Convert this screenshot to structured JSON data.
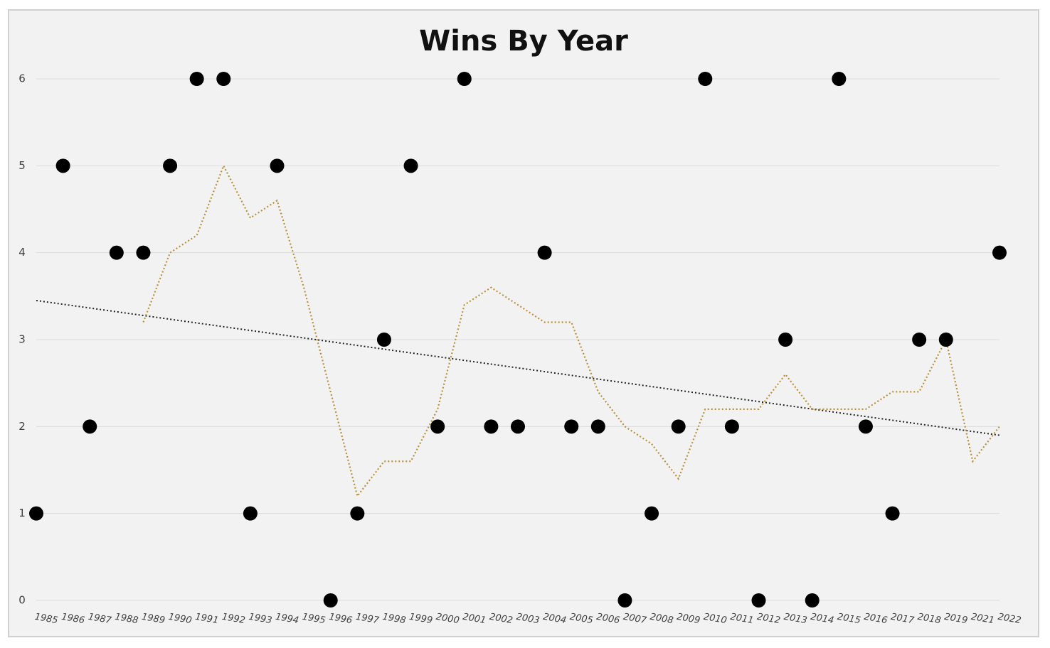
{
  "chart_data": {
    "type": "scatter",
    "title": "Wins By Year",
    "categories": [
      "1985",
      "1986",
      "1987",
      "1988",
      "1989",
      "1990",
      "1991",
      "1992",
      "1993",
      "1994",
      "1995",
      "1996",
      "1997",
      "1998",
      "1999",
      "2000",
      "2001",
      "2002",
      "2003",
      "2004",
      "2005",
      "2006",
      "2007",
      "2008",
      "2009",
      "2010",
      "2011",
      "2012",
      "2013",
      "2014",
      "2015",
      "2016",
      "2017",
      "2018",
      "2019",
      "2021",
      "2022"
    ],
    "series": [
      {
        "color": "#000000",
        "style": "markers",
        "values": [
          1,
          5,
          2,
          4,
          4,
          5,
          6,
          6,
          1,
          5,
          null,
          0,
          1,
          3,
          5,
          2,
          6,
          2,
          2,
          4,
          2,
          2,
          0,
          1,
          2,
          6,
          2,
          0,
          3,
          0,
          6,
          2,
          1,
          3,
          3,
          null,
          4
        ]
      },
      {
        "color": "#b8913a",
        "style": "dotted-line",
        "values": [
          null,
          null,
          null,
          null,
          3.2,
          4.0,
          4.2,
          5.0,
          4.4,
          4.6,
          3.6,
          2.4,
          1.2,
          1.6,
          1.6,
          2.2,
          3.4,
          3.6,
          3.4,
          3.2,
          3.2,
          2.4,
          2.0,
          1.8,
          1.4,
          2.2,
          2.2,
          2.2,
          2.6,
          2.2,
          2.2,
          2.2,
          2.4,
          2.4,
          3.0,
          1.6,
          2.0
        ]
      }
    ],
    "trendline": {
      "color": "#222222",
      "start": 3.45,
      "end": 1.9
    },
    "ylim": [
      0,
      6
    ],
    "yticks": [
      0,
      1,
      2,
      3,
      4,
      5,
      6
    ],
    "grid": true
  }
}
